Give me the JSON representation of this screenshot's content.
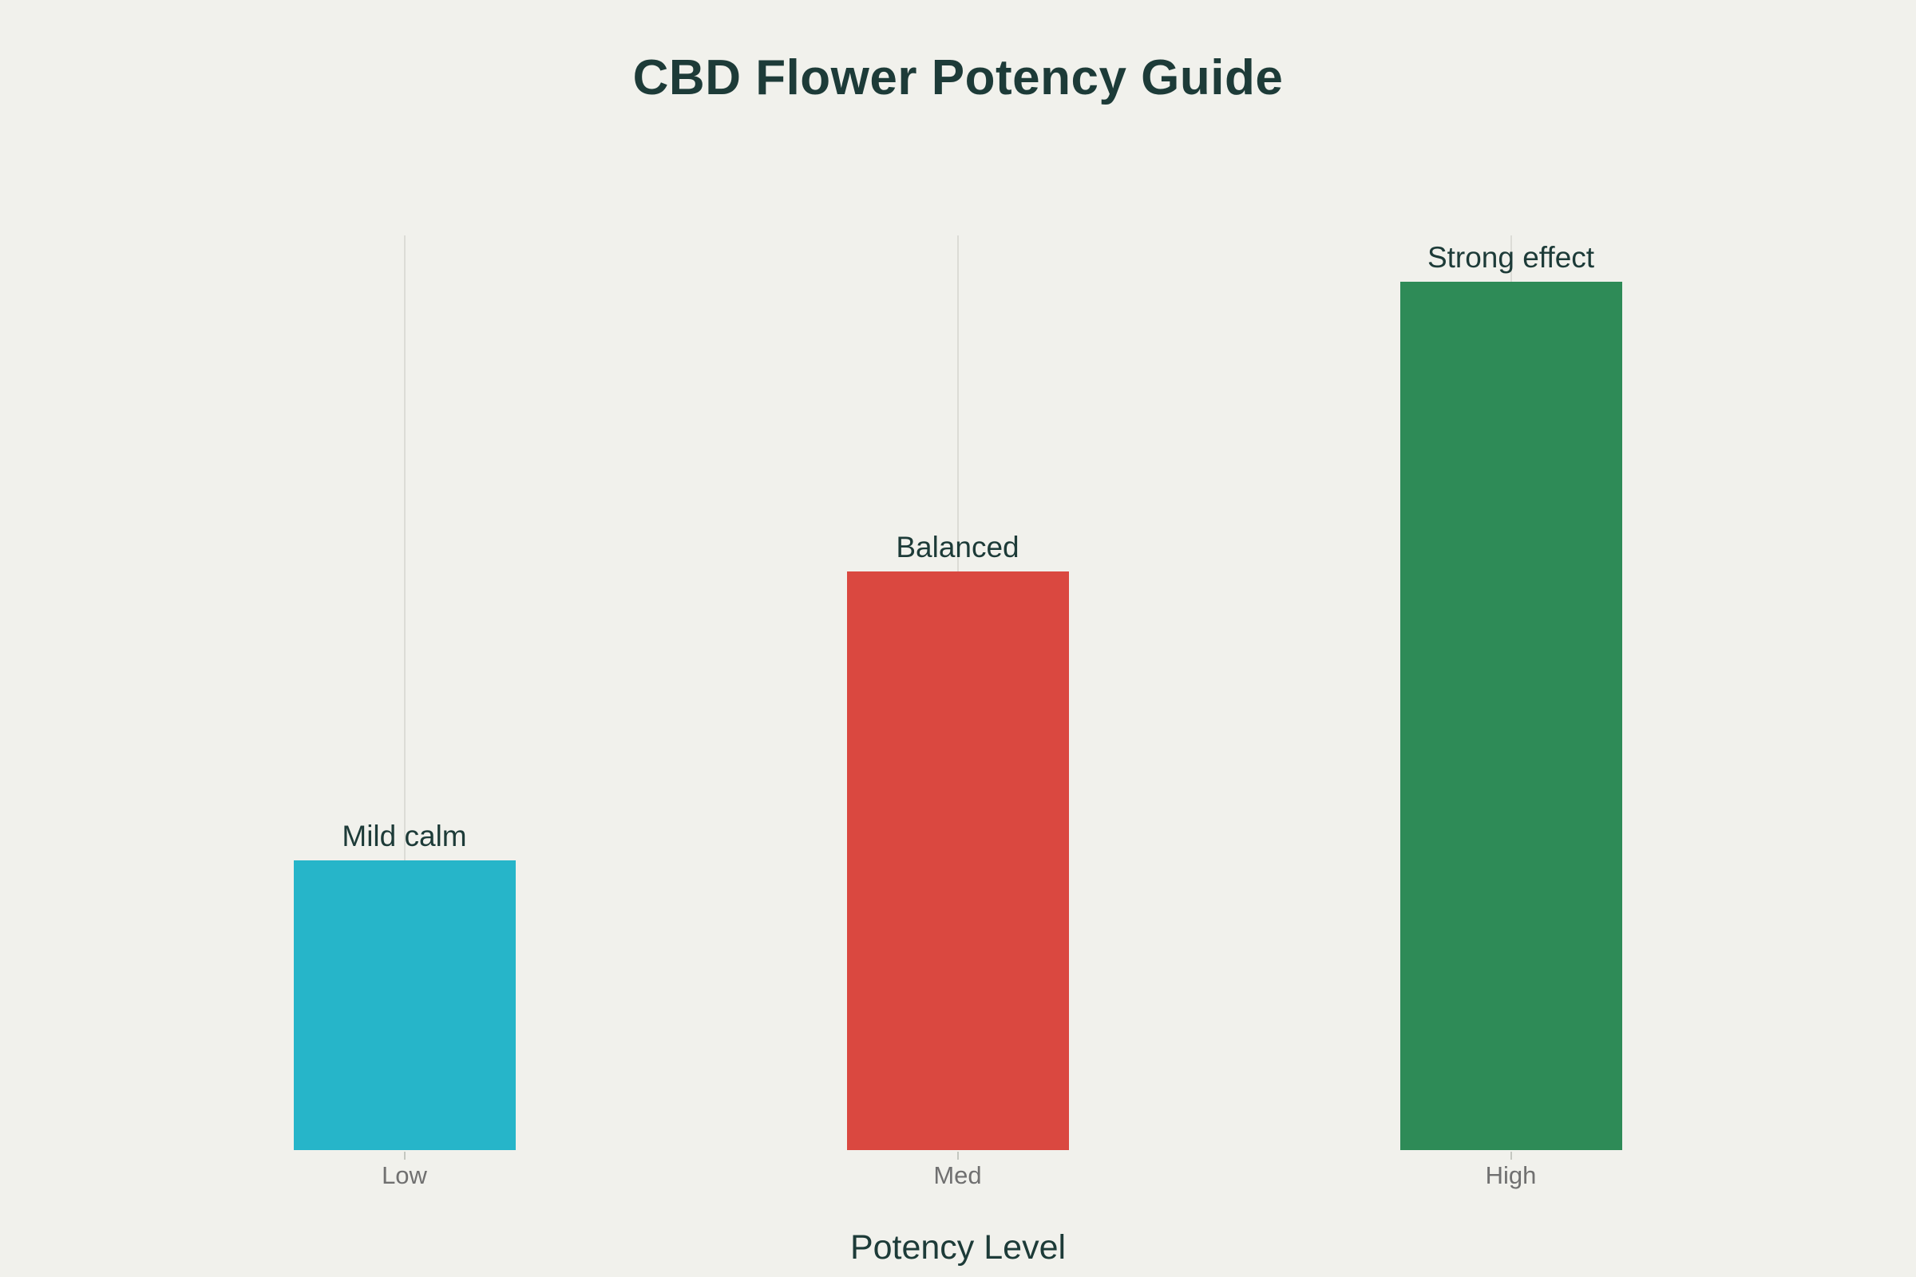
{
  "page": {
    "background": "#f1f1ec"
  },
  "chart_data": {
    "type": "bar",
    "title": "CBD Flower Potency Guide",
    "xlabel": "Potency Level",
    "ylabel": "",
    "categories": [
      "Low",
      "Med",
      "High"
    ],
    "values": [
      1,
      2,
      3
    ],
    "bar_labels": [
      "Mild calm",
      "Balanced",
      "Strong effect"
    ],
    "bar_colors": [
      "#26b5c9",
      "#da4840",
      "#2e8b57"
    ],
    "ylim": [
      0,
      3.16
    ],
    "grid": {
      "vertical": true,
      "horizontal": false
    },
    "legend_position": "none",
    "title_color": "#1d3b38",
    "label_color": "#1d3b38",
    "tick_label_color": "#707070",
    "gridline_color": "#dcdcd6"
  }
}
